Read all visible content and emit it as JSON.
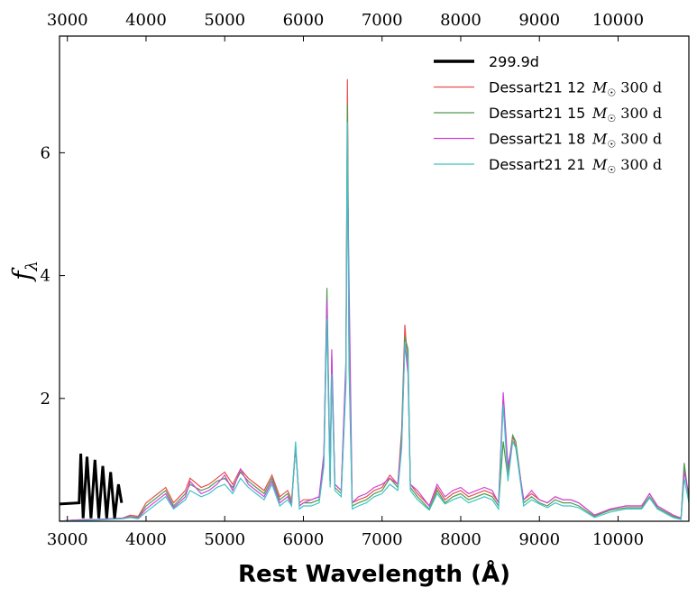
{
  "chart_data": {
    "type": "line",
    "xlabel": "Rest Wavelength (Å)",
    "ylabel": "f_λ",
    "ylabel_main": "f",
    "ylabel_sub": "λ",
    "xlim": [
      2900,
      10900
    ],
    "ylim": [
      0,
      7.9
    ],
    "x_ticks_bottom": [
      3000,
      4000,
      5000,
      6000,
      7000,
      8000,
      9000,
      10000
    ],
    "x_ticks_top": [
      3000,
      4000,
      5000,
      6000,
      7000,
      8000,
      9000,
      10000
    ],
    "y_ticks": [
      2,
      4,
      6
    ],
    "grid": false,
    "legend_position": "top-right",
    "series": [
      {
        "name": "299.9d",
        "color": "#000000",
        "legend_label": "299.9d",
        "legend_mass": ""
      },
      {
        "name": "Dessart21 12 M☉ 300 d",
        "color": "#e8504f",
        "legend_label": "Dessart21 12",
        "legend_mass": "300 d"
      },
      {
        "name": "Dessart21 15 M☉ 300 d",
        "color": "#4e9a4e",
        "legend_label": "Dessart21 15",
        "legend_mass": "300 d"
      },
      {
        "name": "Dessart21 18 M☉ 300 d",
        "color": "#cf44d8",
        "legend_label": "Dessart21 18",
        "legend_mass": "300 d"
      },
      {
        "name": "Dessart21 21 M☉ 300 d",
        "color": "#3ec4c4",
        "legend_label": "Dessart21 21",
        "legend_mass": "300 d"
      }
    ],
    "legend_mass_symbol": "M",
    "legend_mass_sub": "☉",
    "observed": {
      "x": [
        2900,
        3150,
        3170,
        3200,
        3250,
        3300,
        3350,
        3400,
        3450,
        3500,
        3550,
        3600,
        3650,
        3690
      ],
      "y": [
        0.28,
        0.3,
        1.1,
        0.05,
        1.05,
        0.05,
        1.0,
        0.05,
        0.9,
        0.05,
        0.8,
        0.05,
        0.6,
        0.3
      ]
    },
    "models": {
      "x": [
        2900,
        3100,
        3400,
        3700,
        3800,
        3900,
        4000,
        4150,
        4250,
        4350,
        4500,
        4560,
        4700,
        4800,
        4900,
        5000,
        5100,
        5200,
        5300,
        5400,
        5500,
        5600,
        5700,
        5800,
        5850,
        5900,
        5950,
        6000,
        6100,
        6200,
        6260,
        6300,
        6340,
        6360,
        6400,
        6480,
        6540,
        6560,
        6580,
        6620,
        6700,
        6800,
        6900,
        7000,
        7100,
        7200,
        7250,
        7290,
        7330,
        7360,
        7450,
        7600,
        7700,
        7800,
        7900,
        8000,
        8100,
        8200,
        8300,
        8400,
        8480,
        8540,
        8600,
        8660,
        8700,
        8800,
        8900,
        9000,
        9100,
        9200,
        9300,
        9400,
        9500,
        9700,
        9900,
        10100,
        10300,
        10400,
        10500,
        10700,
        10800,
        10840,
        10900
      ],
      "values": [
        [
          0,
          0.02,
          0.03,
          0.05,
          0.1,
          0.08,
          0.3,
          0.45,
          0.55,
          0.3,
          0.5,
          0.7,
          0.55,
          0.6,
          0.7,
          0.8,
          0.6,
          0.85,
          0.7,
          0.6,
          0.5,
          0.75,
          0.4,
          0.5,
          0.35,
          1.2,
          0.3,
          0.35,
          0.35,
          0.4,
          1.0,
          3.5,
          0.6,
          2.5,
          0.6,
          0.5,
          2.5,
          7.2,
          3.0,
          0.3,
          0.35,
          0.4,
          0.5,
          0.55,
          0.75,
          0.6,
          1.5,
          3.2,
          2.5,
          0.6,
          0.45,
          0.25,
          0.55,
          0.35,
          0.45,
          0.5,
          0.4,
          0.45,
          0.5,
          0.45,
          0.3,
          2.0,
          0.8,
          1.4,
          1.2,
          0.35,
          0.45,
          0.35,
          0.3,
          0.4,
          0.35,
          0.35,
          0.3,
          0.1,
          0.2,
          0.25,
          0.25,
          0.45,
          0.25,
          0.1,
          0.05,
          0.85,
          0.4
        ],
        [
          0,
          0.02,
          0.03,
          0.05,
          0.08,
          0.06,
          0.25,
          0.4,
          0.5,
          0.25,
          0.45,
          0.6,
          0.5,
          0.55,
          0.65,
          0.7,
          0.55,
          0.8,
          0.65,
          0.55,
          0.45,
          0.7,
          0.35,
          0.45,
          0.3,
          1.2,
          0.25,
          0.3,
          0.3,
          0.35,
          1.0,
          3.8,
          0.6,
          2.7,
          0.55,
          0.45,
          2.3,
          6.8,
          2.5,
          0.25,
          0.3,
          0.35,
          0.45,
          0.5,
          0.7,
          0.55,
          1.4,
          3.0,
          2.8,
          0.55,
          0.4,
          0.2,
          0.5,
          0.3,
          0.4,
          0.45,
          0.35,
          0.4,
          0.45,
          0.4,
          0.25,
          1.3,
          0.7,
          1.4,
          1.3,
          0.3,
          0.4,
          0.3,
          0.25,
          0.35,
          0.3,
          0.3,
          0.25,
          0.08,
          0.18,
          0.22,
          0.22,
          0.4,
          0.22,
          0.08,
          0.04,
          0.95,
          0.35
        ],
        [
          0,
          0.02,
          0.03,
          0.05,
          0.07,
          0.05,
          0.2,
          0.35,
          0.45,
          0.22,
          0.4,
          0.65,
          0.45,
          0.5,
          0.6,
          0.75,
          0.5,
          0.85,
          0.6,
          0.5,
          0.4,
          0.65,
          0.3,
          0.4,
          0.28,
          1.25,
          0.25,
          0.3,
          0.35,
          0.4,
          1.1,
          3.6,
          0.65,
          2.8,
          0.6,
          0.5,
          2.6,
          5.9,
          3.9,
          0.3,
          0.4,
          0.45,
          0.55,
          0.6,
          0.7,
          0.6,
          1.3,
          2.9,
          2.4,
          0.6,
          0.5,
          0.25,
          0.6,
          0.4,
          0.5,
          0.55,
          0.45,
          0.5,
          0.55,
          0.5,
          0.3,
          2.1,
          0.9,
          1.3,
          1.2,
          0.35,
          0.5,
          0.35,
          0.3,
          0.4,
          0.35,
          0.35,
          0.3,
          0.1,
          0.2,
          0.25,
          0.25,
          0.45,
          0.25,
          0.1,
          0.05,
          0.8,
          0.45
        ],
        [
          0,
          0.01,
          0.02,
          0.04,
          0.06,
          0.04,
          0.15,
          0.3,
          0.4,
          0.2,
          0.35,
          0.5,
          0.4,
          0.45,
          0.55,
          0.6,
          0.45,
          0.7,
          0.55,
          0.45,
          0.35,
          0.6,
          0.25,
          0.35,
          0.25,
          1.3,
          0.2,
          0.25,
          0.25,
          0.3,
          0.9,
          3.3,
          0.55,
          2.4,
          0.5,
          0.4,
          2.2,
          6.5,
          2.7,
          0.2,
          0.25,
          0.3,
          0.4,
          0.45,
          0.6,
          0.5,
          1.2,
          2.9,
          2.6,
          0.5,
          0.35,
          0.18,
          0.45,
          0.28,
          0.35,
          0.4,
          0.3,
          0.35,
          0.4,
          0.35,
          0.2,
          1.9,
          0.65,
          1.3,
          1.2,
          0.25,
          0.35,
          0.28,
          0.22,
          0.3,
          0.25,
          0.25,
          0.22,
          0.06,
          0.15,
          0.2,
          0.2,
          0.38,
          0.2,
          0.06,
          0.03,
          0.7,
          0.3
        ]
      ]
    }
  }
}
